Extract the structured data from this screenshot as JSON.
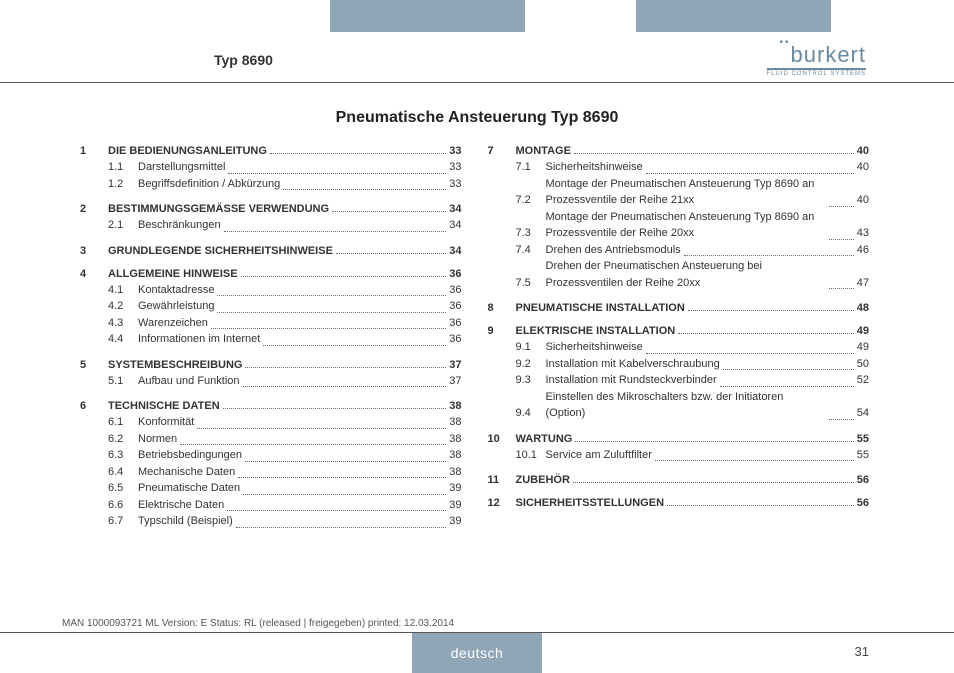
{
  "header": {
    "typ": "Typ 8690",
    "logo_name": "burkert",
    "logo_sub": "FLUID CONTROL SYSTEMS"
  },
  "title": "Pneumatische Ansteuerung Typ 8690",
  "columns": [
    [
      {
        "num": "1",
        "title": "Die Bedienungsanleitung",
        "page": "33",
        "subs": [
          {
            "num": "1.1",
            "title": "Darstellungsmittel",
            "page": "33"
          },
          {
            "num": "1.2",
            "title": "Begriffsdefinition / Abkürzung",
            "page": "33"
          }
        ]
      },
      {
        "num": "2",
        "title": "Bestimmungsgemässe Verwendung",
        "page": "34",
        "subs": [
          {
            "num": "2.1",
            "title": "Beschränkungen",
            "page": "34"
          }
        ]
      },
      {
        "num": "3",
        "title": "Grundlegende Sicherheitshinweise",
        "page": "34",
        "subs": []
      },
      {
        "num": "4",
        "title": "Allgemeine Hinweise",
        "page": "36",
        "subs": [
          {
            "num": "4.1",
            "title": "Kontaktadresse",
            "page": "36"
          },
          {
            "num": "4.2",
            "title": "Gewährleistung",
            "page": "36"
          },
          {
            "num": "4.3",
            "title": "Warenzeichen",
            "page": "36"
          },
          {
            "num": "4.4",
            "title": "Informationen im Internet",
            "page": "36"
          }
        ]
      },
      {
        "num": "5",
        "title": "Systembeschreibung",
        "page": "37",
        "subs": [
          {
            "num": "5.1",
            "title": "Aufbau und Funktion",
            "page": "37"
          }
        ]
      },
      {
        "num": "6",
        "title": "Technische Daten",
        "page": "38",
        "subs": [
          {
            "num": "6.1",
            "title": "Konformität",
            "page": "38"
          },
          {
            "num": "6.2",
            "title": "Normen",
            "page": "38"
          },
          {
            "num": "6.3",
            "title": "Betriebsbedingungen",
            "page": "38"
          },
          {
            "num": "6.4",
            "title": "Mechanische Daten",
            "page": "38"
          },
          {
            "num": "6.5",
            "title": "Pneumatische Daten",
            "page": "39"
          },
          {
            "num": "6.6",
            "title": "Elektrische Daten",
            "page": "39"
          },
          {
            "num": "6.7",
            "title": "Typschild (Beispiel)",
            "page": "39"
          }
        ]
      }
    ],
    [
      {
        "num": "7",
        "title": "Montage",
        "page": "40",
        "subs": [
          {
            "num": "7.1",
            "title": "Sicherheitshinweise",
            "page": "40"
          },
          {
            "num": "7.2",
            "title": "Montage der Pneumatischen Ansteuerung Typ 8690 an Prozessventile der Reihe 21xx",
            "page": "40",
            "wrap": true
          },
          {
            "num": "7.3",
            "title": "Montage der Pneumatischen Ansteuerung Typ 8690 an Prozessventile der Reihe 20xx",
            "page": "43",
            "wrap": true
          },
          {
            "num": "7.4",
            "title": "Drehen des Antriebsmoduls",
            "page": "46"
          },
          {
            "num": "7.5",
            "title": "Drehen der Pneumatischen Ansteuerung bei Prozessventilen der Reihe 20xx",
            "page": "47",
            "wrap": true
          }
        ]
      },
      {
        "num": "8",
        "title": "Pneumatische Installation",
        "page": "48",
        "subs": []
      },
      {
        "num": "9",
        "title": "Elektrische Installation",
        "page": "49",
        "subs": [
          {
            "num": "9.1",
            "title": "Sicherheitshinweise",
            "page": "49"
          },
          {
            "num": "9.2",
            "title": "Installation mit Kabelverschraubung",
            "page": "50"
          },
          {
            "num": "9.3",
            "title": "Installation mit Rundsteckverbinder",
            "page": "52"
          },
          {
            "num": "9.4",
            "title": "Einstellen des Mikroschalters bzw. der Initiatoren (Option)",
            "page": "54",
            "wrap": true
          }
        ]
      },
      {
        "num": "10",
        "title": "Wartung",
        "page": "55",
        "subs": [
          {
            "num": "10.1",
            "title": "Service am Zuluftfilter",
            "page": "55"
          }
        ]
      },
      {
        "num": "11",
        "title": "Zubehör",
        "page": "56",
        "subs": []
      },
      {
        "num": "12",
        "title": "Sicherheitsstellungen",
        "page": "56",
        "subs": []
      }
    ]
  ],
  "footer": {
    "meta": "MAN  1000093721  ML  Version: E Status: RL (released | freigegeben)  printed: 12.03.2014",
    "lang": "deutsch",
    "page": "31"
  },
  "colors": {
    "accent": "#8ea6b5",
    "logo": "#6a8aa0",
    "text": "#333333"
  }
}
